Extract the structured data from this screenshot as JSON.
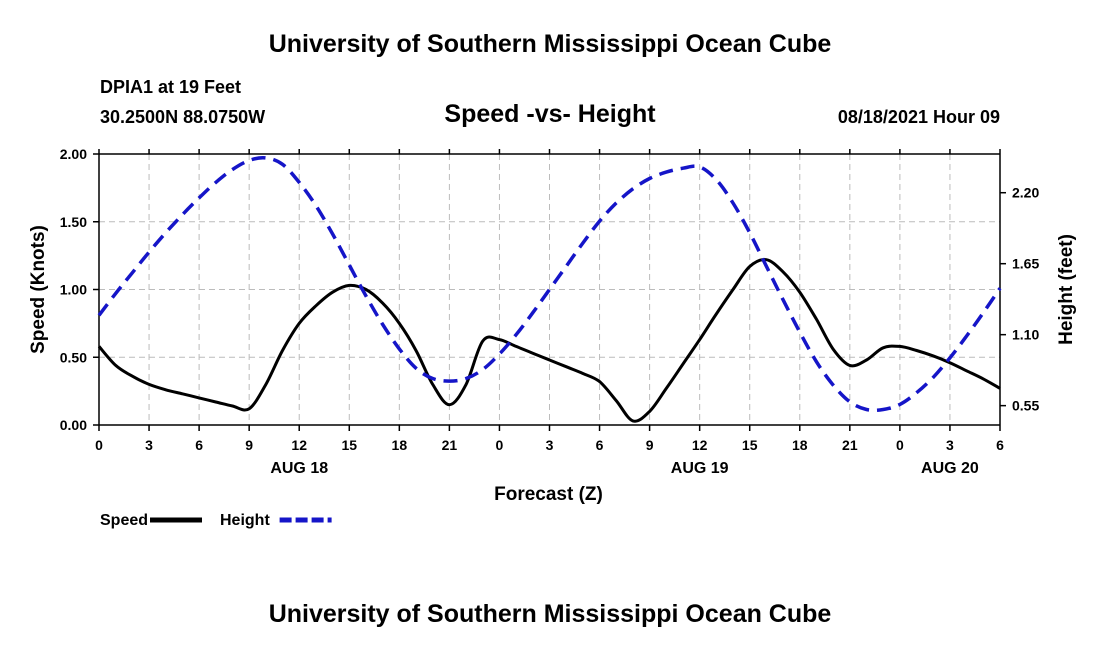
{
  "header": {
    "title_top": "University of Southern Mississippi Ocean Cube",
    "title_bottom": "University of Southern Mississippi Ocean Cube",
    "station": "DPIA1 at 19 Feet",
    "coords": "30.2500N  88.0750W",
    "datetime": "08/18/2021 Hour 09"
  },
  "chart_data": {
    "type": "line",
    "title": "Speed -vs- Height",
    "xlabel": "Forecast (Z)",
    "ylabel": "Speed (Knots)",
    "y2label": "Height (feet)",
    "xlim": [
      0,
      54
    ],
    "ylim": [
      0,
      2.0
    ],
    "y2lim": [
      0.4,
      2.5
    ],
    "grid": true,
    "x_ticks": [
      0,
      3,
      6,
      9,
      12,
      15,
      18,
      21,
      24,
      27,
      30,
      33,
      36,
      39,
      42,
      45,
      48,
      51,
      54
    ],
    "x_tick_labels": [
      "0",
      "3",
      "6",
      "9",
      "12",
      "15",
      "18",
      "21",
      "0",
      "3",
      "6",
      "9",
      "12",
      "15",
      "18",
      "21",
      "0",
      "3",
      "6"
    ],
    "y_ticks": [
      0,
      0.5,
      1.0,
      1.5,
      2.0
    ],
    "y_tick_labels": [
      "0.00",
      "0.50",
      "1.00",
      "1.50",
      "2.00"
    ],
    "y2_ticks": [
      0.55,
      1.1,
      1.65,
      2.2
    ],
    "y2_tick_labels": [
      "0.55",
      "1.10",
      "1.65",
      "2.20"
    ],
    "date_labels": [
      {
        "x": 12,
        "label": "AUG 18"
      },
      {
        "x": 36,
        "label": "AUG 19"
      },
      {
        "x": 51,
        "label": "AUG 20"
      }
    ],
    "series": [
      {
        "name": "Speed",
        "axis": "left",
        "color": "#000000",
        "dash": "solid",
        "x": [
          0,
          1,
          2,
          3,
          4,
          5,
          6,
          7,
          8,
          9,
          10,
          11,
          12,
          13,
          14,
          15,
          16,
          17,
          18,
          19,
          20,
          21,
          22,
          23,
          24,
          25,
          26,
          27,
          28,
          29,
          30,
          31,
          32,
          33,
          34,
          35,
          36,
          37,
          38,
          39,
          40,
          41,
          42,
          43,
          44,
          45,
          46,
          47,
          48,
          49,
          50,
          51,
          52,
          53,
          54
        ],
        "values": [
          0.58,
          0.44,
          0.36,
          0.3,
          0.26,
          0.23,
          0.2,
          0.17,
          0.14,
          0.12,
          0.3,
          0.55,
          0.75,
          0.88,
          0.98,
          1.03,
          1.0,
          0.9,
          0.75,
          0.55,
          0.3,
          0.15,
          0.3,
          0.62,
          0.63,
          0.58,
          0.53,
          0.48,
          0.43,
          0.38,
          0.32,
          0.18,
          0.03,
          0.1,
          0.27,
          0.45,
          0.63,
          0.82,
          1.0,
          1.17,
          1.22,
          1.13,
          0.98,
          0.78,
          0.56,
          0.44,
          0.48,
          0.57,
          0.58,
          0.55,
          0.51,
          0.46,
          0.4,
          0.34,
          0.27
        ]
      },
      {
        "name": "Height",
        "axis": "right",
        "color": "#1515c8",
        "dash": "dashed",
        "x": [
          0,
          1,
          2,
          3,
          4,
          5,
          6,
          7,
          8,
          9,
          10,
          11,
          12,
          13,
          14,
          15,
          16,
          17,
          18,
          19,
          20,
          21,
          22,
          23,
          24,
          25,
          26,
          27,
          28,
          29,
          30,
          31,
          32,
          33,
          34,
          35,
          36,
          37,
          38,
          39,
          40,
          41,
          42,
          43,
          44,
          45,
          46,
          47,
          48,
          49,
          50,
          51,
          52,
          53,
          54
        ],
        "values": [
          1.25,
          1.42,
          1.58,
          1.74,
          1.89,
          2.03,
          2.16,
          2.28,
          2.38,
          2.45,
          2.47,
          2.42,
          2.28,
          2.1,
          1.88,
          1.64,
          1.4,
          1.18,
          0.99,
          0.84,
          0.76,
          0.74,
          0.76,
          0.83,
          0.95,
          1.1,
          1.27,
          1.45,
          1.63,
          1.81,
          1.98,
          2.12,
          2.23,
          2.31,
          2.36,
          2.39,
          2.4,
          2.3,
          2.12,
          1.89,
          1.63,
          1.37,
          1.12,
          0.89,
          0.71,
          0.58,
          0.52,
          0.52,
          0.56,
          0.65,
          0.77,
          0.92,
          1.09,
          1.27,
          1.46
        ]
      }
    ],
    "legend": [
      {
        "label": "Speed",
        "color": "#000000",
        "dash": "solid"
      },
      {
        "label": "Height",
        "color": "#1515c8",
        "dash": "dashed"
      }
    ],
    "legend_position": "bottom-left"
  }
}
